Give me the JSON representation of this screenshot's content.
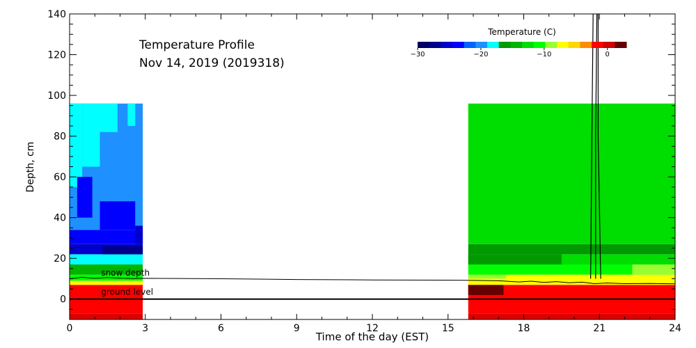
{
  "chart_data": {
    "type": "heatmap",
    "title": "Temperature Profile",
    "subtitle": "Nov 14, 2019 (2019318)",
    "xlabel": "Time of the day (EST)",
    "ylabel": "Depth, cm",
    "xlim": [
      0,
      24
    ],
    "ylim": [
      -10,
      140
    ],
    "x_ticks": [
      0,
      3,
      6,
      9,
      12,
      15,
      18,
      21,
      24
    ],
    "y_ticks": [
      0,
      20,
      40,
      60,
      80,
      100,
      120,
      140
    ],
    "colorbar": {
      "title": "Temperature (C)",
      "range": [
        -30,
        3
      ],
      "ticks": [
        -30,
        -20,
        -10,
        0
      ],
      "colors": [
        "#000066",
        "#00008b",
        "#0000cd",
        "#0000ff",
        "#0066ff",
        "#1e90ff",
        "#00ffff",
        "#009900",
        "#00b400",
        "#00dd00",
        "#00ff00",
        "#99ff33",
        "#ffff00",
        "#ffd700",
        "#ff8c00",
        "#ff0000",
        "#cc0000",
        "#660000"
      ]
    },
    "annotations": {
      "snow_depth": "snow depth",
      "ground_level": "ground level"
    },
    "cells": [
      {
        "x0": 0.0,
        "x1": 2.9,
        "y0": -10,
        "y1": -7,
        "color": "#dd0000"
      },
      {
        "x0": 0.0,
        "x1": 2.9,
        "y0": -7,
        "y1": 7,
        "color": "#ff0000"
      },
      {
        "x0": 0.0,
        "x1": 2.9,
        "y0": 7,
        "y1": 9,
        "color": "#ffff00"
      },
      {
        "x0": 0.0,
        "x1": 2.9,
        "y0": 9,
        "y1": 12,
        "color": "#00ff00"
      },
      {
        "x0": 0.0,
        "x1": 2.9,
        "y0": 12,
        "y1": 17,
        "color": "#00b400"
      },
      {
        "x0": 0.0,
        "x1": 2.9,
        "y0": 17,
        "y1": 22,
        "color": "#00ffff"
      },
      {
        "x0": 0.0,
        "x1": 2.9,
        "y0": 22,
        "y1": 27,
        "color": "#0000cd"
      },
      {
        "x0": 1.3,
        "x1": 2.9,
        "y0": 22,
        "y1": 26,
        "color": "#00008b"
      },
      {
        "x0": 0.0,
        "x1": 2.9,
        "y0": 27,
        "y1": 34,
        "color": "#0000ff"
      },
      {
        "x0": 0.0,
        "x1": 2.9,
        "y0": 34,
        "y1": 96,
        "color": "#1e90ff"
      },
      {
        "x0": 0.0,
        "x1": 0.5,
        "y0": 55,
        "y1": 96,
        "color": "#00ffff"
      },
      {
        "x0": 0.5,
        "x1": 1.2,
        "y0": 65,
        "y1": 96,
        "color": "#00ffff"
      },
      {
        "x0": 1.2,
        "x1": 1.9,
        "y0": 82,
        "y1": 96,
        "color": "#00ffff"
      },
      {
        "x0": 2.3,
        "x1": 2.6,
        "y0": 85,
        "y1": 96,
        "color": "#00ffff"
      },
      {
        "x0": 1.2,
        "x1": 2.6,
        "y0": 34,
        "y1": 48,
        "color": "#0000ff"
      },
      {
        "x0": 0.3,
        "x1": 0.9,
        "y0": 40,
        "y1": 60,
        "color": "#0000ff"
      },
      {
        "x0": 2.6,
        "x1": 2.9,
        "y0": 27,
        "y1": 36,
        "color": "#0000cd"
      },
      {
        "x0": 15.8,
        "x1": 24.0,
        "y0": -10,
        "y1": -7,
        "color": "#dd0000"
      },
      {
        "x0": 15.8,
        "x1": 24.0,
        "y0": -7,
        "y1": 7,
        "color": "#ff0000"
      },
      {
        "x0": 15.8,
        "x1": 17.2,
        "y0": 2,
        "y1": 7,
        "color": "#660000"
      },
      {
        "x0": 15.8,
        "x1": 24.0,
        "y0": 7,
        "y1": 12,
        "color": "#ffff00"
      },
      {
        "x0": 15.8,
        "x1": 17.3,
        "y0": 10,
        "y1": 12,
        "color": "#99ff33"
      },
      {
        "x0": 15.8,
        "x1": 24.0,
        "y0": 12,
        "y1": 17,
        "color": "#00ff00"
      },
      {
        "x0": 22.3,
        "x1": 24.0,
        "y0": 12,
        "y1": 17,
        "color": "#99ff33"
      },
      {
        "x0": 15.8,
        "x1": 24.0,
        "y0": 17,
        "y1": 22,
        "color": "#00dd00"
      },
      {
        "x0": 15.8,
        "x1": 19.5,
        "y0": 17,
        "y1": 22,
        "color": "#009900"
      },
      {
        "x0": 15.8,
        "x1": 24.0,
        "y0": 22,
        "y1": 27,
        "color": "#009900"
      },
      {
        "x0": 15.8,
        "x1": 24.0,
        "y0": 27,
        "y1": 96,
        "color": "#00dd00"
      }
    ],
    "snow_depth_line": [
      [
        0.0,
        10.0
      ],
      [
        0.5,
        10.7
      ],
      [
        1.0,
        10.2
      ],
      [
        1.5,
        10.6
      ],
      [
        2.0,
        10.3
      ],
      [
        2.5,
        10.1
      ],
      [
        2.9,
        10.2
      ],
      [
        6.0,
        10.0
      ],
      [
        9.0,
        9.6
      ],
      [
        12.0,
        9.4
      ],
      [
        15.0,
        9.3
      ],
      [
        15.8,
        9.2
      ],
      [
        17.0,
        9.0
      ],
      [
        17.8,
        8.4
      ],
      [
        18.3,
        8.8
      ],
      [
        18.8,
        8.2
      ],
      [
        19.3,
        8.6
      ],
      [
        19.8,
        8.0
      ],
      [
        20.3,
        8.3
      ],
      [
        20.8,
        7.6
      ],
      [
        21.3,
        7.9
      ],
      [
        22.0,
        7.6
      ],
      [
        23.0,
        7.7
      ],
      [
        24.0,
        7.5
      ]
    ],
    "ground_level_line": [
      [
        0.0,
        0.0
      ],
      [
        24.0,
        0.0
      ]
    ],
    "spike_lines": [
      [
        [
          20.65,
          10
        ],
        [
          20.7,
          80
        ],
        [
          20.75,
          140
        ]
      ],
      [
        [
          20.85,
          10
        ],
        [
          20.85,
          80
        ],
        [
          20.9,
          140
        ]
      ],
      [
        [
          20.95,
          140
        ],
        [
          20.95,
          80
        ],
        [
          21.05,
          10
        ]
      ]
    ]
  }
}
